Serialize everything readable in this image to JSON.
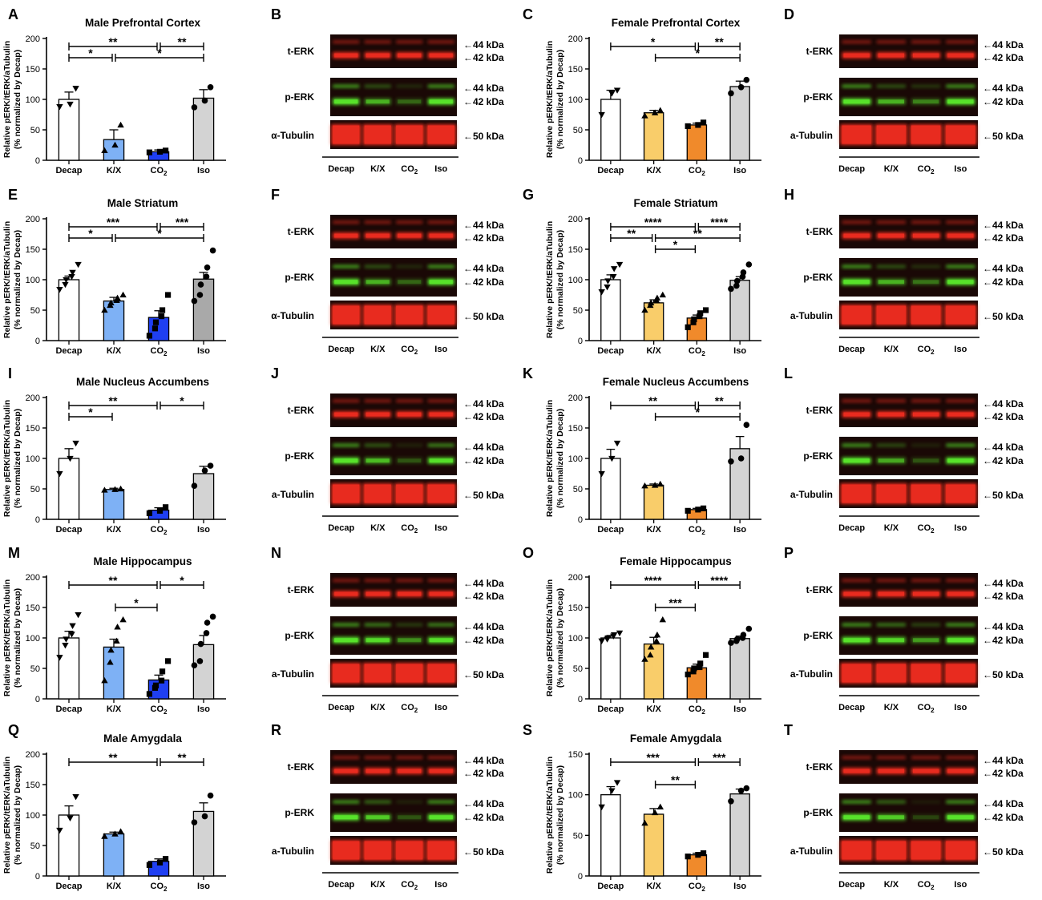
{
  "panel_letters": [
    "A",
    "B",
    "C",
    "D",
    "E",
    "F",
    "G",
    "H",
    "I",
    "J",
    "K",
    "L",
    "M",
    "N",
    "O",
    "P",
    "Q",
    "R",
    "S",
    "T"
  ],
  "groups": [
    "Decap",
    "K/X",
    "CO₂",
    "Iso"
  ],
  "colors": {
    "decap": "#ffffff",
    "male_kx": "#7eb1f5",
    "male_co2": "#1f3ff2",
    "female_kx": "#f9cd6a",
    "female_co2": "#f08a2b",
    "iso": "#d3d3d3",
    "iso_dark": "#a9a9a9",
    "blot_red": "#e82b1f",
    "blot_green": "#57e22a",
    "blot_bg": "#1a0806"
  },
  "ylabel_line1": "Relative pERK/tERK/aTubulin",
  "ylabel_line2": "(% normalized by Decap)",
  "chart_data": [
    {
      "panel": "A",
      "type": "bar",
      "title": "Male Prefrontal Cortex",
      "sex": "male",
      "ylim": [
        0,
        200
      ],
      "ticks": [
        0,
        50,
        100,
        150,
        200
      ],
      "categories": [
        "Decap",
        "K/X",
        "CO₂",
        "Iso"
      ],
      "values": [
        100,
        34,
        14,
        102
      ],
      "errors": [
        12,
        16,
        3,
        14
      ],
      "points": [
        [
          88,
          92,
          118
        ],
        [
          16,
          25,
          58
        ],
        [
          13,
          14,
          16
        ],
        [
          87,
          98,
          120
        ]
      ],
      "markers": [
        "triangle-down",
        "triangle-up",
        "square",
        "circle"
      ],
      "comparisons": [
        {
          "from": 0,
          "to": 2,
          "label": "**"
        },
        {
          "from": 2,
          "to": 3,
          "label": "**"
        },
        {
          "from": 0,
          "to": 1,
          "label": "*"
        },
        {
          "from": 1,
          "to": 3,
          "label": "*"
        }
      ]
    },
    {
      "panel": "C",
      "type": "bar",
      "title": "Female Prefrontal Cortex",
      "sex": "female",
      "ylim": [
        0,
        200
      ],
      "ticks": [
        0,
        50,
        100,
        150,
        200
      ],
      "categories": [
        "Decap",
        "K/X",
        "CO₂",
        "Iso"
      ],
      "values": [
        100,
        78,
        58,
        121
      ],
      "errors": [
        15,
        4,
        3,
        9
      ],
      "points": [
        [
          75,
          110,
          115
        ],
        [
          73,
          78,
          82
        ],
        [
          56,
          58,
          62
        ],
        [
          110,
          120,
          132
        ]
      ],
      "markers": [
        "triangle-down",
        "triangle-up",
        "square",
        "circle"
      ],
      "comparisons": [
        {
          "from": 0,
          "to": 2,
          "label": "*"
        },
        {
          "from": 2,
          "to": 3,
          "label": "**"
        },
        {
          "from": 1,
          "to": 3,
          "label": "*"
        }
      ]
    },
    {
      "panel": "E",
      "type": "bar",
      "title": "Male Striatum",
      "sex": "male",
      "ylim": [
        0,
        200
      ],
      "ticks": [
        0,
        50,
        100,
        150,
        200
      ],
      "categories": [
        "Decap",
        "K/X",
        "CO₂",
        "Iso"
      ],
      "values": [
        100,
        65,
        38,
        101
      ],
      "errors": [
        6,
        6,
        11,
        11
      ],
      "points": [
        [
          84,
          92,
          100,
          105,
          112,
          125
        ],
        [
          50,
          58,
          62,
          66,
          70,
          75
        ],
        [
          8,
          20,
          30,
          40,
          50,
          75
        ],
        [
          65,
          75,
          92,
          105,
          120,
          148
        ]
      ],
      "markers": [
        "triangle-down",
        "triangle-up",
        "square",
        "circle"
      ],
      "iso_color": "dark",
      "comparisons": [
        {
          "from": 0,
          "to": 2,
          "label": "***"
        },
        {
          "from": 2,
          "to": 3,
          "label": "***"
        },
        {
          "from": 0,
          "to": 1,
          "label": "*"
        },
        {
          "from": 1,
          "to": 3,
          "label": "*"
        }
      ]
    },
    {
      "panel": "G",
      "type": "bar",
      "title": "Female Striatum",
      "sex": "female",
      "ylim": [
        0,
        200
      ],
      "ticks": [
        0,
        50,
        100,
        150,
        200
      ],
      "categories": [
        "Decap",
        "K/X",
        "CO₂",
        "Iso"
      ],
      "values": [
        100,
        62,
        37,
        99
      ],
      "errors": [
        8,
        5,
        5,
        6
      ],
      "points": [
        [
          80,
          88,
          98,
          105,
          118,
          125
        ],
        [
          50,
          58,
          62,
          66,
          70,
          75
        ],
        [
          22,
          30,
          35,
          40,
          45,
          50
        ],
        [
          85,
          90,
          98,
          105,
          112,
          125
        ]
      ],
      "markers": [
        "triangle-down",
        "triangle-up",
        "square",
        "circle"
      ],
      "comparisons": [
        {
          "from": 0,
          "to": 2,
          "label": "****"
        },
        {
          "from": 2,
          "to": 3,
          "label": "****"
        },
        {
          "from": 0,
          "to": 1,
          "label": "**"
        },
        {
          "from": 1,
          "to": 3,
          "label": "**"
        },
        {
          "from": 1,
          "to": 2,
          "label": "*"
        }
      ]
    },
    {
      "panel": "I",
      "type": "bar",
      "title": "Male Nucleus Accumbens",
      "sex": "male",
      "ylim": [
        0,
        200
      ],
      "ticks": [
        0,
        50,
        100,
        150,
        200
      ],
      "categories": [
        "Decap",
        "K/X",
        "CO₂",
        "Iso"
      ],
      "values": [
        100,
        49,
        15,
        75
      ],
      "errors": [
        16,
        2,
        4,
        12
      ],
      "points": [
        [
          75,
          100,
          125
        ],
        [
          48,
          49,
          50
        ],
        [
          10,
          14,
          20
        ],
        [
          55,
          80,
          88
        ]
      ],
      "markers": [
        "triangle-down",
        "triangle-up",
        "square",
        "circle"
      ],
      "comparisons": [
        {
          "from": 0,
          "to": 2,
          "label": "**"
        },
        {
          "from": 2,
          "to": 3,
          "label": "*"
        },
        {
          "from": 0,
          "to": 1,
          "label": "*"
        }
      ]
    },
    {
      "panel": "K",
      "type": "bar",
      "title": "Female Nucleus Accumbens",
      "sex": "female",
      "ylim": [
        0,
        200
      ],
      "ticks": [
        0,
        50,
        100,
        150,
        200
      ],
      "categories": [
        "Decap",
        "K/X",
        "CO₂",
        "Iso"
      ],
      "values": [
        100,
        56,
        16,
        116
      ],
      "errors": [
        15,
        2,
        2,
        20
      ],
      "points": [
        [
          75,
          100,
          125
        ],
        [
          55,
          56,
          58
        ],
        [
          14,
          16,
          18
        ],
        [
          95,
          100,
          155
        ]
      ],
      "markers": [
        "triangle-down",
        "triangle-up",
        "square",
        "circle"
      ],
      "comparisons": [
        {
          "from": 0,
          "to": 2,
          "label": "**"
        },
        {
          "from": 2,
          "to": 3,
          "label": "**"
        },
        {
          "from": 1,
          "to": 3,
          "label": "*"
        }
      ]
    },
    {
      "panel": "M",
      "type": "bar",
      "title": "Male Hippocampus",
      "sex": "male",
      "ylim": [
        0,
        200
      ],
      "ticks": [
        0,
        50,
        100,
        150,
        200
      ],
      "categories": [
        "Decap",
        "K/X",
        "CO₂",
        "Iso"
      ],
      "values": [
        100,
        85,
        31,
        89
      ],
      "errors": [
        11,
        13,
        8,
        15
      ],
      "points": [
        [
          68,
          88,
          98,
          106,
          120,
          138
        ],
        [
          30,
          60,
          80,
          95,
          118,
          130
        ],
        [
          8,
          18,
          22,
          30,
          45,
          62
        ],
        [
          55,
          62,
          90,
          108,
          125,
          135
        ]
      ],
      "markers": [
        "triangle-down",
        "triangle-up",
        "square",
        "circle"
      ],
      "comparisons": [
        {
          "from": 0,
          "to": 2,
          "label": "**"
        },
        {
          "from": 2,
          "to": 3,
          "label": "*"
        },
        {
          "from": 1,
          "to": 2,
          "label": "*"
        }
      ]
    },
    {
      "panel": "O",
      "type": "bar",
      "title": "Female Hippocampus",
      "sex": "female",
      "ylim": [
        0,
        200
      ],
      "ticks": [
        0,
        50,
        100,
        150,
        200
      ],
      "categories": [
        "Decap",
        "K/X",
        "CO₂",
        "Iso"
      ],
      "values": [
        100,
        90,
        51,
        99
      ],
      "errors": [
        4,
        11,
        6,
        4
      ],
      "points": [
        [
          95,
          98,
          100,
          103,
          105,
          108
        ],
        [
          65,
          72,
          85,
          95,
          105,
          130
        ],
        [
          40,
          45,
          50,
          52,
          58,
          72
        ],
        [
          92,
          95,
          98,
          100,
          105,
          115
        ]
      ],
      "markers": [
        "triangle-down",
        "triangle-up",
        "square",
        "circle"
      ],
      "comparisons": [
        {
          "from": 0,
          "to": 2,
          "label": "****"
        },
        {
          "from": 2,
          "to": 3,
          "label": "****"
        },
        {
          "from": 1,
          "to": 2,
          "label": "***"
        }
      ]
    },
    {
      "panel": "Q",
      "type": "bar",
      "title": "Male Amygdala",
      "sex": "male",
      "ylim": [
        0,
        200
      ],
      "ticks": [
        0,
        50,
        100,
        150,
        200
      ],
      "categories": [
        "Decap",
        "K/X",
        "CO₂",
        "Iso"
      ],
      "values": [
        100,
        69,
        24,
        106
      ],
      "errors": [
        15,
        3,
        4,
        14
      ],
      "points": [
        [
          75,
          95,
          130
        ],
        [
          65,
          69,
          73
        ],
        [
          18,
          22,
          28
        ],
        [
          88,
          98,
          132
        ]
      ],
      "markers": [
        "triangle-down",
        "triangle-up",
        "square",
        "circle"
      ],
      "comparisons": [
        {
          "from": 0,
          "to": 2,
          "label": "**"
        },
        {
          "from": 2,
          "to": 3,
          "label": "**"
        }
      ]
    },
    {
      "panel": "S",
      "type": "bar",
      "title": "Female Amygdala",
      "sex": "female",
      "ylim": [
        0,
        150
      ],
      "ticks": [
        0,
        50,
        100,
        150
      ],
      "categories": [
        "Decap",
        "K/X",
        "CO₂",
        "Iso"
      ],
      "values": [
        100,
        76,
        26,
        101
      ],
      "errors": [
        10,
        7,
        2,
        6
      ],
      "points": [
        [
          85,
          105,
          115
        ],
        [
          65,
          78,
          85
        ],
        [
          24,
          26,
          28
        ],
        [
          92,
          105,
          108
        ]
      ],
      "markers": [
        "triangle-down",
        "triangle-up",
        "square",
        "circle"
      ],
      "comparisons": [
        {
          "from": 0,
          "to": 2,
          "label": "***"
        },
        {
          "from": 2,
          "to": 3,
          "label": "***"
        },
        {
          "from": 1,
          "to": 2,
          "label": "**"
        }
      ]
    }
  ],
  "blot_labels": {
    "terk": "t-ERK",
    "perk": "p-ERK",
    "tub_alpha": "α-Tubulin",
    "tub_a": "a-Tubulin",
    "kda44": "←44 kDa",
    "kda42": "←42 kDa",
    "kda50": "←50 kDa"
  },
  "blots": [
    {
      "panel": "B",
      "tubulin_label": "α-Tubulin",
      "perk_intensity": [
        1.0,
        0.55,
        0.25,
        1.0
      ]
    },
    {
      "panel": "D",
      "tubulin_label": "a-Tubulin",
      "perk_intensity": [
        1.0,
        0.55,
        0.35,
        1.0
      ]
    },
    {
      "panel": "F",
      "tubulin_label": "α-Tubulin",
      "perk_intensity": [
        1.0,
        0.55,
        0.25,
        1.0
      ]
    },
    {
      "panel": "H",
      "tubulin_label": "a-Tubulin",
      "perk_intensity": [
        1.0,
        0.55,
        0.3,
        1.0
      ]
    },
    {
      "panel": "J",
      "tubulin_label": "a-Tubulin",
      "perk_intensity": [
        1.0,
        0.6,
        0.2,
        0.9
      ]
    },
    {
      "panel": "L",
      "tubulin_label": "a-Tubulin",
      "perk_intensity": [
        1.0,
        0.5,
        0.2,
        1.0
      ]
    },
    {
      "panel": "N",
      "tubulin_label": "a-Tubulin",
      "perk_intensity": [
        1.0,
        0.85,
        0.4,
        0.9
      ]
    },
    {
      "panel": "P",
      "tubulin_label": "a-Tubulin",
      "perk_intensity": [
        1.0,
        0.8,
        0.45,
        1.0
      ]
    },
    {
      "panel": "R",
      "tubulin_label": "a-Tubulin",
      "perk_intensity": [
        1.0,
        0.7,
        0.2,
        1.0
      ]
    },
    {
      "panel": "T",
      "tubulin_label": "a-Tubulin",
      "perk_intensity": [
        1.0,
        0.7,
        0.15,
        1.0
      ]
    }
  ]
}
